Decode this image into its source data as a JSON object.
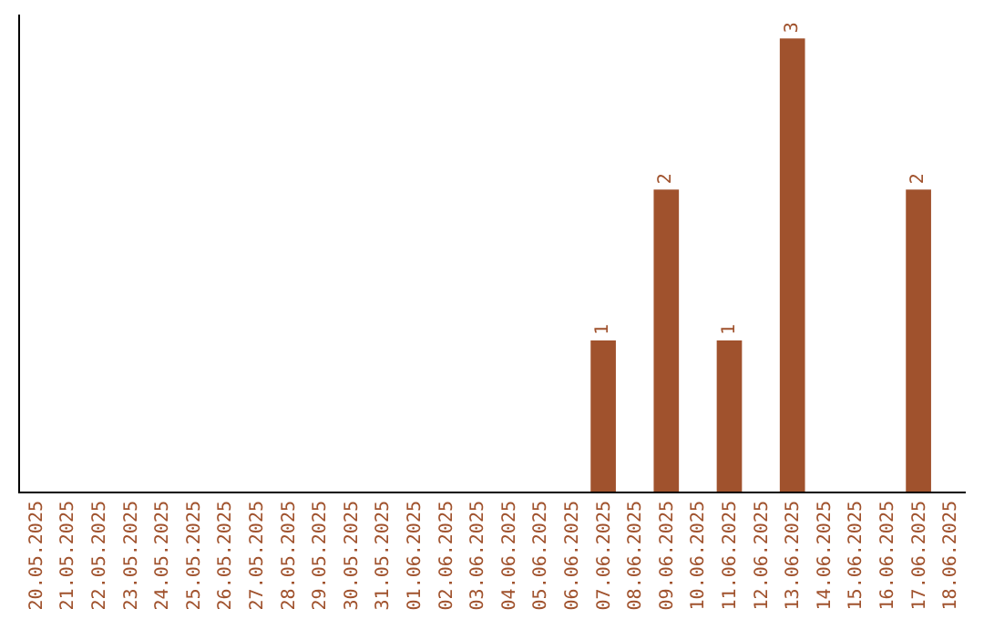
{
  "chart_data": {
    "type": "bar",
    "categories": [
      "20.05.2025",
      "21.05.2025",
      "22.05.2025",
      "23.05.2025",
      "24.05.2025",
      "25.05.2025",
      "26.05.2025",
      "27.05.2025",
      "28.05.2025",
      "29.05.2025",
      "30.05.2025",
      "31.05.2025",
      "01.06.2025",
      "02.06.2025",
      "03.06.2025",
      "04.06.2025",
      "05.06.2025",
      "06.06.2025",
      "07.06.2025",
      "08.06.2025",
      "09.06.2025",
      "10.06.2025",
      "11.06.2025",
      "12.06.2025",
      "13.06.2025",
      "14.06.2025",
      "15.06.2025",
      "16.06.2025",
      "17.06.2025",
      "18.06.2025"
    ],
    "values": [
      null,
      null,
      null,
      null,
      null,
      null,
      null,
      null,
      null,
      null,
      null,
      null,
      null,
      null,
      null,
      null,
      null,
      null,
      1,
      null,
      2,
      null,
      1,
      null,
      3,
      null,
      null,
      null,
      2,
      null
    ],
    "value_labels": [
      null,
      null,
      null,
      null,
      null,
      null,
      null,
      null,
      null,
      null,
      null,
      null,
      null,
      null,
      null,
      null,
      null,
      null,
      "1",
      null,
      "2",
      null,
      "1",
      null,
      "3",
      null,
      null,
      null,
      "2",
      null
    ],
    "color": "#a0522d",
    "tick_labels": "x",
    "grid": false,
    "legend": false
  }
}
